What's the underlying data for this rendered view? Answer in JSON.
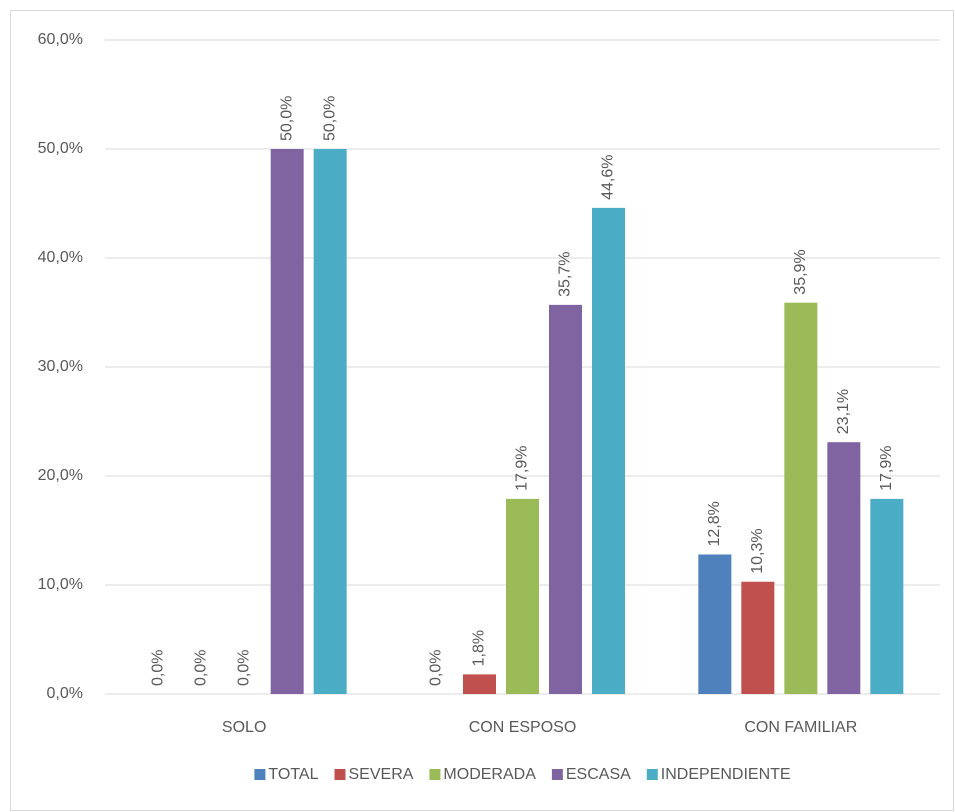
{
  "chart_data": {
    "type": "bar",
    "categories": [
      "SOLO",
      "CON ESPOSO",
      "CON FAMILIAR"
    ],
    "series": [
      {
        "name": "TOTAL",
        "color": "#4f81bd",
        "values": [
          0.0,
          0.0,
          12.8
        ],
        "value_labels": [
          "0,0%",
          "0,0%",
          "12,8%"
        ]
      },
      {
        "name": "SEVERA",
        "color": "#c0504d",
        "values": [
          0.0,
          1.8,
          10.3
        ],
        "value_labels": [
          "0,0%",
          "1,8%",
          "10,3%"
        ]
      },
      {
        "name": "MODERADA",
        "color": "#9bbb59",
        "values": [
          0.0,
          17.9,
          35.9
        ],
        "value_labels": [
          "0,0%",
          "17,9%",
          "35,9%"
        ]
      },
      {
        "name": "ESCASA",
        "color": "#8064a2",
        "values": [
          50.0,
          35.7,
          23.1
        ],
        "value_labels": [
          "50,0%",
          "35,7%",
          "23,1%"
        ]
      },
      {
        "name": "INDEPENDIENTE",
        "color": "#4bacc6",
        "values": [
          50.0,
          44.6,
          17.9
        ],
        "value_labels": [
          "50,0%",
          "44,6%",
          "17,9%"
        ]
      }
    ],
    "ylim": [
      0,
      60
    ],
    "yticks": [
      {
        "value": 0,
        "label": "0,0%"
      },
      {
        "value": 10,
        "label": "10,0%"
      },
      {
        "value": 20,
        "label": "20,0%"
      },
      {
        "value": 30,
        "label": "30,0%"
      },
      {
        "value": 40,
        "label": "40,0%"
      },
      {
        "value": 50,
        "label": "50,0%"
      },
      {
        "value": 60,
        "label": "60,0%"
      }
    ],
    "grid": true,
    "legend": "bottom"
  }
}
